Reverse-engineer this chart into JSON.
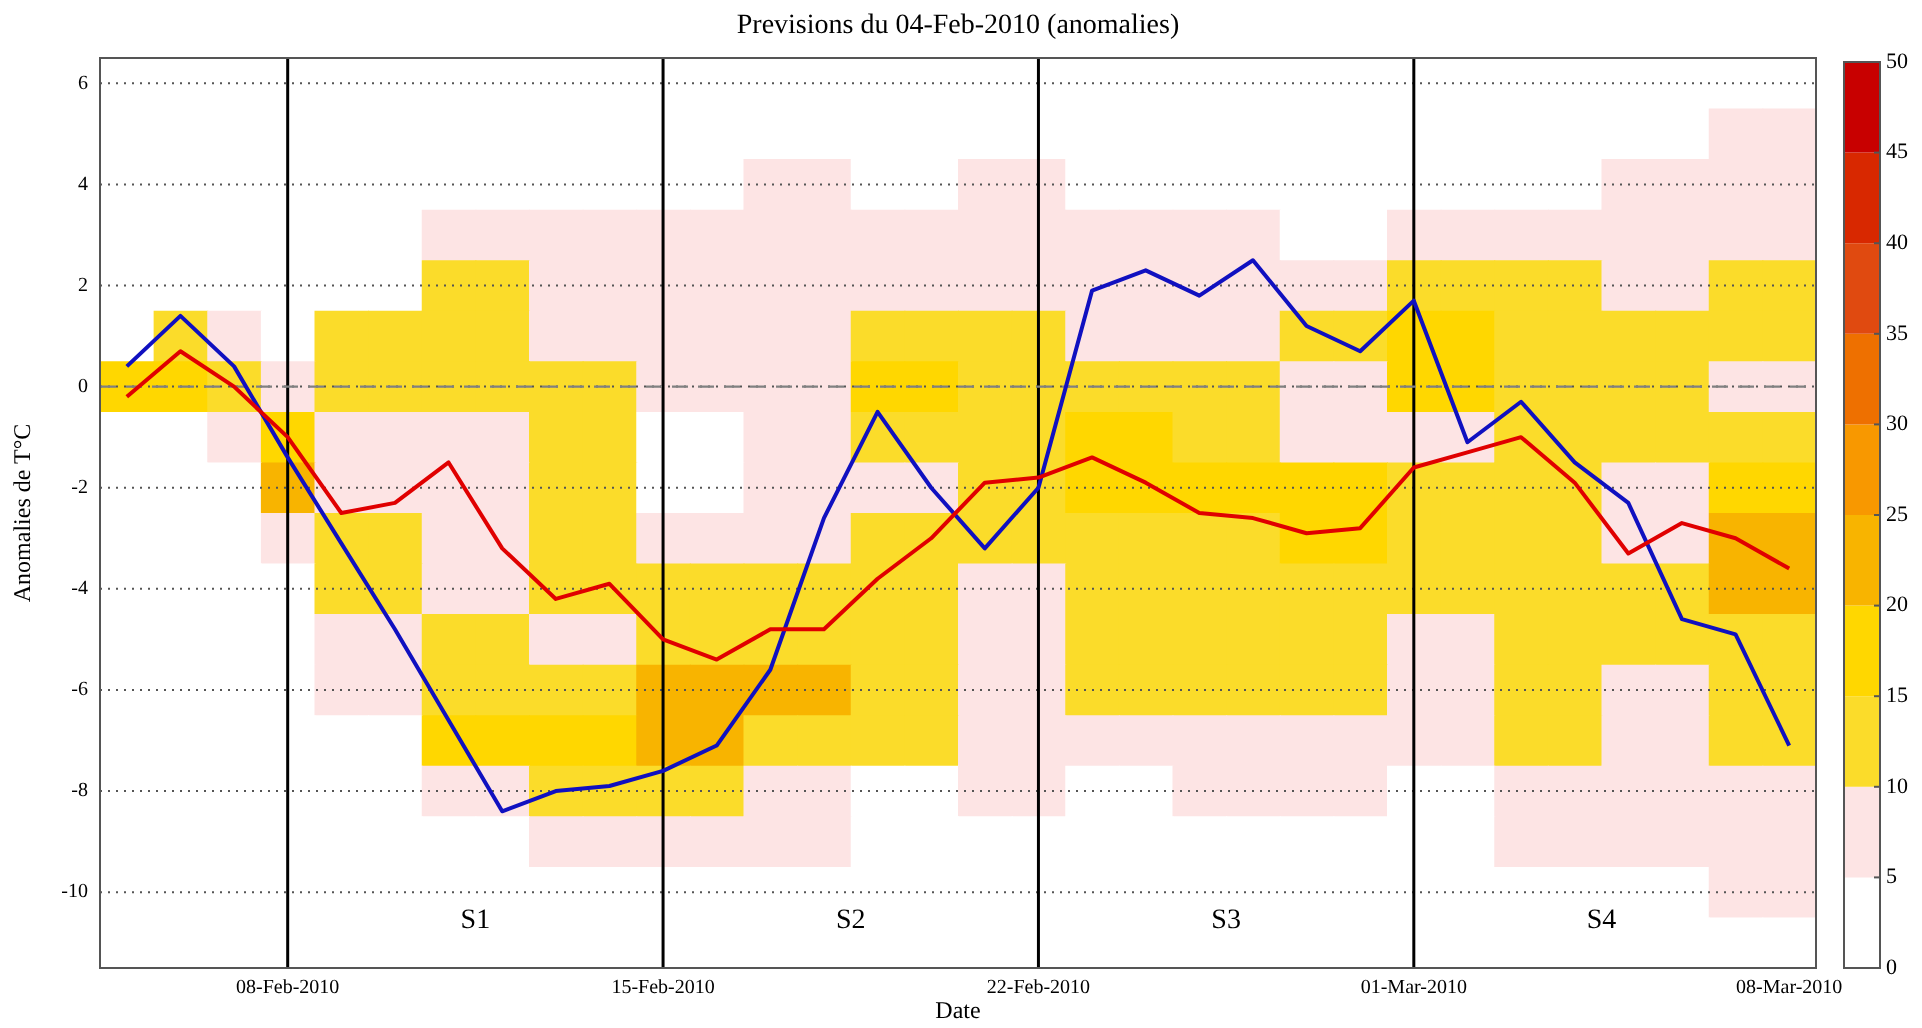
{
  "chart_data": [
    {
      "type": "heatmap",
      "title": "Previsions du 04-Feb-2010 (anomalies)",
      "xlabel": "Date",
      "ylabel": "Anomalies de T°C",
      "categories": [
        null,
        null,
        null,
        "08-Feb-2010",
        null,
        null,
        null,
        null,
        null,
        null,
        "15-Feb-2010",
        null,
        null,
        null,
        null,
        null,
        null,
        "22-Feb-2010",
        null,
        null,
        null,
        null,
        null,
        null,
        "01-Mar-2010",
        null,
        null,
        null,
        null,
        null,
        null,
        "08-Mar-2010"
      ],
      "y_categories": [
        "6",
        null,
        "4",
        null,
        "2",
        null,
        "0",
        null,
        "-2",
        null,
        "-4",
        null,
        "-6",
        null,
        "-8",
        null,
        "-10",
        null
      ],
      "grid": "y",
      "tick_labels": false,
      "clim": [
        0,
        50
      ],
      "cticks": [
        0,
        5,
        10,
        15,
        20,
        25,
        30,
        35,
        40,
        45,
        50
      ],
      "colors": [
        "#ffffff",
        "#fde4e4",
        "#fbdc2a",
        "#ffd700",
        "#f8b400",
        "#f89800",
        "#ee7000",
        "#e04a10",
        "#d82800",
        "#c80000"
      ],
      "cells": [
        [
          2,
          2,
          2,
          2,
          2,
          2,
          2,
          2,
          2,
          2,
          2,
          2,
          2,
          2,
          2,
          2,
          2,
          2,
          2,
          2,
          2,
          2,
          2,
          2,
          2,
          2,
          2,
          2,
          2,
          2,
          2,
          2
        ],
        [
          2,
          2,
          2,
          2,
          2,
          2,
          2,
          2,
          2,
          2,
          2,
          2,
          2,
          2,
          2,
          2,
          2,
          2,
          2,
          2,
          2,
          2,
          2,
          2,
          2,
          2,
          2,
          2,
          2,
          2,
          7,
          7
        ],
        [
          2,
          2,
          2,
          2,
          2,
          2,
          2,
          2,
          2,
          2,
          2,
          2,
          7,
          7,
          2,
          2,
          7,
          7,
          2,
          2,
          2,
          2,
          2,
          2,
          2,
          2,
          2,
          2,
          7,
          7,
          7,
          7
        ],
        [
          2,
          2,
          2,
          2,
          2,
          2,
          7,
          7,
          7,
          7,
          7,
          7,
          7,
          7,
          7,
          7,
          7,
          7,
          7,
          7,
          7,
          7,
          2,
          2,
          7,
          7,
          7,
          7,
          7,
          7,
          7,
          7
        ],
        [
          2,
          2,
          2,
          2,
          2,
          2,
          12,
          12,
          7,
          7,
          7,
          7,
          7,
          7,
          7,
          7,
          7,
          7,
          7,
          7,
          7,
          7,
          7,
          7,
          12,
          12,
          12,
          12,
          7,
          7,
          12,
          12
        ],
        [
          2,
          12,
          7,
          2,
          12,
          12,
          12,
          12,
          7,
          7,
          7,
          7,
          7,
          7,
          12,
          12,
          12,
          12,
          7,
          7,
          7,
          7,
          12,
          12,
          17,
          17,
          12,
          12,
          12,
          12,
          12,
          12
        ],
        [
          17,
          17,
          12,
          7,
          12,
          12,
          12,
          12,
          12,
          12,
          7,
          7,
          7,
          7,
          17,
          17,
          12,
          12,
          12,
          12,
          12,
          12,
          7,
          7,
          17,
          17,
          12,
          12,
          12,
          12,
          7,
          7
        ],
        [
          2,
          2,
          7,
          17,
          7,
          7,
          7,
          7,
          12,
          12,
          2,
          2,
          7,
          7,
          12,
          12,
          12,
          12,
          17,
          17,
          12,
          12,
          7,
          7,
          7,
          7,
          12,
          12,
          12,
          12,
          12,
          12
        ],
        [
          2,
          2,
          2,
          22,
          7,
          7,
          7,
          7,
          12,
          12,
          2,
          2,
          7,
          7,
          7,
          7,
          12,
          12,
          17,
          17,
          17,
          17,
          17,
          17,
          12,
          12,
          12,
          12,
          7,
          7,
          17,
          17
        ],
        [
          2,
          2,
          2,
          7,
          12,
          12,
          7,
          7,
          12,
          12,
          7,
          7,
          7,
          7,
          12,
          12,
          12,
          12,
          12,
          12,
          12,
          12,
          17,
          17,
          12,
          12,
          12,
          12,
          7,
          7,
          22,
          22
        ],
        [
          2,
          2,
          2,
          2,
          12,
          12,
          7,
          7,
          12,
          12,
          12,
          12,
          12,
          12,
          12,
          12,
          7,
          7,
          12,
          12,
          12,
          12,
          12,
          12,
          12,
          12,
          12,
          12,
          12,
          12,
          22,
          22
        ],
        [
          2,
          2,
          2,
          2,
          7,
          7,
          12,
          12,
          7,
          7,
          12,
          12,
          12,
          12,
          12,
          12,
          7,
          7,
          12,
          12,
          12,
          12,
          12,
          12,
          7,
          7,
          12,
          12,
          12,
          12,
          12,
          12
        ],
        [
          2,
          2,
          2,
          2,
          7,
          7,
          12,
          12,
          12,
          12,
          22,
          22,
          22,
          22,
          12,
          12,
          7,
          7,
          12,
          12,
          12,
          12,
          12,
          12,
          7,
          7,
          12,
          12,
          7,
          7,
          12,
          12
        ],
        [
          2,
          2,
          2,
          2,
          2,
          2,
          17,
          17,
          17,
          17,
          22,
          22,
          12,
          12,
          12,
          12,
          7,
          7,
          7,
          7,
          7,
          7,
          7,
          7,
          7,
          7,
          12,
          12,
          7,
          7,
          12,
          12
        ],
        [
          2,
          2,
          2,
          2,
          2,
          2,
          7,
          7,
          12,
          12,
          12,
          12,
          7,
          7,
          2,
          2,
          7,
          7,
          2,
          2,
          7,
          7,
          7,
          7,
          2,
          2,
          7,
          7,
          7,
          7,
          7,
          7
        ],
        [
          2,
          2,
          2,
          2,
          2,
          2,
          2,
          2,
          7,
          7,
          7,
          7,
          7,
          7,
          2,
          2,
          2,
          2,
          2,
          2,
          2,
          2,
          2,
          2,
          2,
          2,
          7,
          7,
          7,
          7,
          7,
          7
        ],
        [
          2,
          2,
          2,
          2,
          2,
          2,
          2,
          2,
          2,
          2,
          2,
          2,
          2,
          2,
          2,
          2,
          2,
          2,
          2,
          2,
          2,
          2,
          2,
          2,
          2,
          2,
          2,
          2,
          2,
          2,
          7,
          7
        ],
        [
          2,
          2,
          2,
          2,
          2,
          2,
          2,
          2,
          2,
          2,
          2,
          2,
          2,
          2,
          2,
          2,
          2,
          2,
          2,
          2,
          2,
          2,
          2,
          2,
          2,
          2,
          2,
          2,
          2,
          2,
          2,
          2
        ]
      ],
      "ref_lines": [
        {
          "axis": "x",
          "value": "08-Feb-2010",
          "color": "#000000",
          "line_style": "solid"
        },
        {
          "axis": "x",
          "value": "15-Feb-2010",
          "color": "#000000",
          "line_style": "solid"
        },
        {
          "axis": "x",
          "value": "22-Feb-2010",
          "color": "#000000",
          "line_style": "solid"
        },
        {
          "axis": "x",
          "value": "01-Mar-2010",
          "color": "#000000",
          "line_style": "solid"
        },
        {
          "axis": "y",
          "value": "0",
          "color": "#808080",
          "line_style": "dashed"
        }
      ],
      "annotations": [
        "S1",
        "S2",
        "S3",
        "S4"
      ]
    },
    {
      "type": "line",
      "x": [
        "2010-02-05",
        "2010-02-06",
        "2010-02-07",
        "2010-02-08",
        "2010-02-09",
        "2010-02-10",
        "2010-02-11",
        "2010-02-12",
        "2010-02-13",
        "2010-02-14",
        "2010-02-15",
        "2010-02-16",
        "2010-02-17",
        "2010-02-18",
        "2010-02-19",
        "2010-02-20",
        "2010-02-21",
        "2010-02-22",
        "2010-02-23",
        "2010-02-24",
        "2010-02-25",
        "2010-02-26",
        "2010-02-27",
        "2010-02-28",
        "2010-03-01",
        "2010-03-02",
        "2010-03-03",
        "2010-03-04",
        "2010-03-05",
        "2010-03-06",
        "2010-03-07",
        "2010-03-08"
      ],
      "xlim": [
        "2010-02-04T12:00",
        "2010-03-08T12:00"
      ],
      "ylim": [
        -11.5,
        6.5
      ],
      "xticks": [
        {
          "value": "2010-02-08",
          "label": "08-Feb-2010"
        },
        {
          "value": "2010-02-15",
          "label": "15-Feb-2010"
        },
        {
          "value": "2010-02-22",
          "label": "22-Feb-2010"
        },
        {
          "value": "2010-03-01",
          "label": "01-Mar-2010"
        },
        {
          "value": "2010-03-08",
          "label": "08-Mar-2010"
        }
      ],
      "yticks": [
        -10,
        -8,
        -6,
        -4,
        -2,
        0,
        2,
        4,
        6
      ],
      "marker": "none",
      "line_style": "solid",
      "series": [
        {
          "color": "#e00000",
          "values": [
            -0.2,
            0.7,
            0,
            -1.0,
            -2.5,
            -2.3,
            -1.5,
            -3.2,
            -4.2,
            -3.9,
            -5.0,
            -5.4,
            -4.8,
            -4.8,
            -3.8,
            -3.0,
            -1.9,
            -1.8,
            -1.4,
            -1.9,
            -2.5,
            -2.6,
            -2.9,
            -2.8,
            -1.6,
            -1.3,
            -1.0,
            -1.9,
            -3.3,
            -2.7,
            -3.0,
            -3.6
          ]
        },
        {
          "color": "#1010c0",
          "values": [
            0.4,
            1.4,
            0.4,
            -1.4,
            -3.1,
            -4.8,
            -6.6,
            -8.4,
            -8.0,
            -7.9,
            -7.6,
            -7.1,
            -5.6,
            -2.6,
            -0.5,
            -2.0,
            -3.2,
            -2.0,
            1.9,
            2.3,
            1.8,
            2.5,
            1.2,
            0.7,
            1.7,
            -1.1,
            -0.3,
            -1.5,
            -2.3,
            -4.6,
            -4.9,
            -7.1
          ]
        }
      ]
    }
  ]
}
